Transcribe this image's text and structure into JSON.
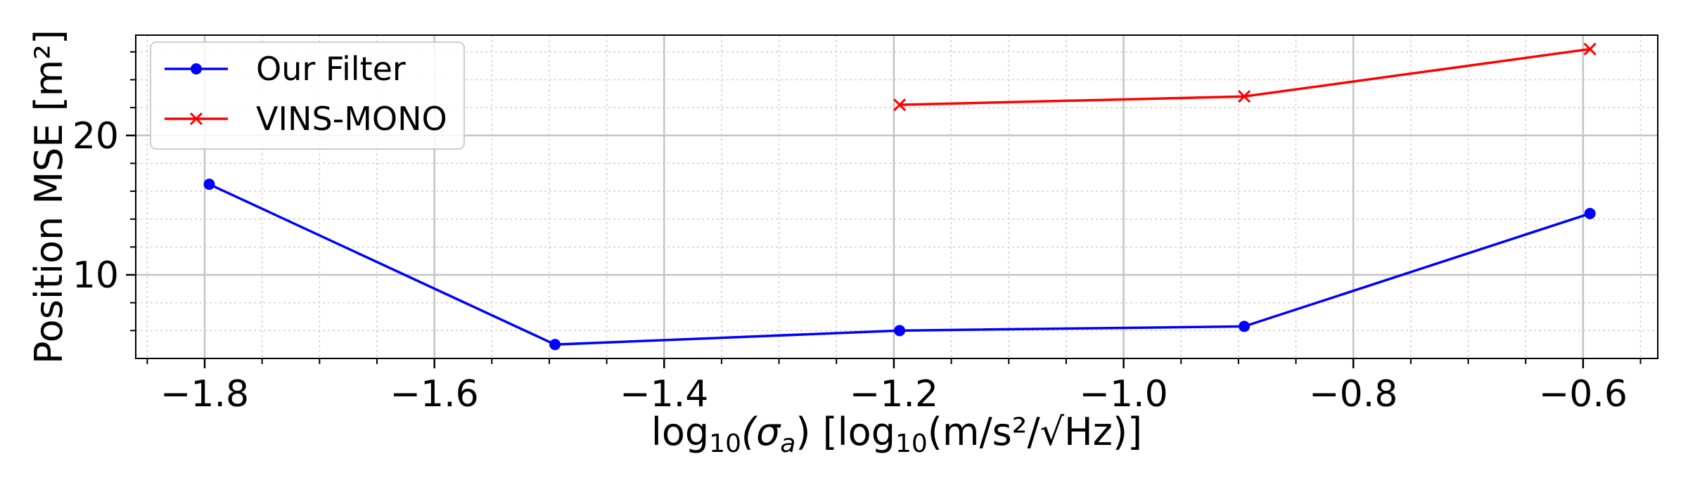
{
  "chart_data": {
    "type": "line",
    "xlabel": "log₁₀(σₐ) [log₁₀(m/s²/√Hz)]",
    "xlabel_parts": {
      "prefix": "log",
      "sub1": "10",
      "sigma": "(σ",
      "sigma_sub": "a",
      "close": ")",
      "unit_open": " [log",
      "sub2": "10",
      "unit_rest": "(m/s²/√Hz)]"
    },
    "ylabel": "Position MSE [m²]",
    "xlim": [
      -1.86,
      -0.535
    ],
    "ylim": [
      4.0,
      27.2
    ],
    "x_ticks": [
      -1.8,
      -1.6,
      -1.4,
      -1.2,
      -1.0,
      -0.8,
      -0.6
    ],
    "x_tick_labels": [
      "−1.8",
      "−1.6",
      "−1.4",
      "−1.2",
      "−1.0",
      "−0.8",
      "−0.6"
    ],
    "y_ticks": [
      10,
      20
    ],
    "y_tick_labels": [
      "10",
      "20"
    ],
    "grid": "major and minor",
    "legend_position": "upper-left",
    "series": [
      {
        "name": "Our Filter",
        "color": "#0000ff",
        "marker": "circle",
        "x": [
          -1.796,
          -1.495,
          -1.195,
          -0.895,
          -0.594
        ],
        "y": [
          16.5,
          5.0,
          6.0,
          6.3,
          14.4
        ]
      },
      {
        "name": "VINS-MONO",
        "color": "#ff0000",
        "marker": "x",
        "x": [
          -1.195,
          -0.895,
          -0.594
        ],
        "y": [
          22.2,
          22.8,
          26.2
        ]
      }
    ]
  }
}
